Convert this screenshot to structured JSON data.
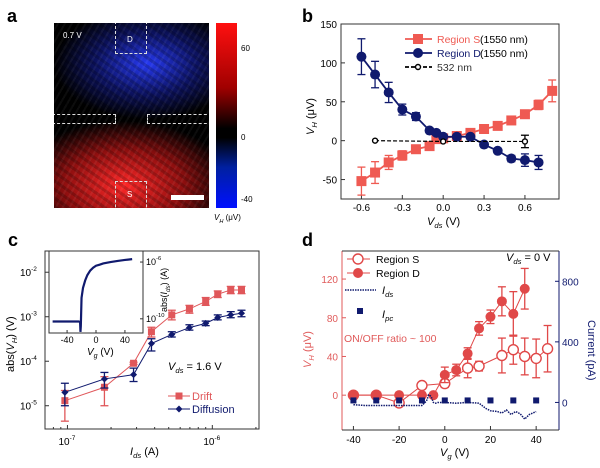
{
  "panels": {
    "a": "a",
    "b": "b",
    "c": "c",
    "d": "d"
  },
  "colors": {
    "red": "#ef5a52",
    "navy": "#101a6e",
    "black": "#000000"
  },
  "chart_data": [
    {
      "panel": "a",
      "type": "heatmap",
      "annotation": "0.7 V",
      "regions": [
        "D",
        "S"
      ],
      "colorbar": {
        "ticks": [
          "60",
          "0",
          "-40"
        ],
        "label": {
          "main": "V",
          "sub": "H",
          "rest": " (μV)"
        },
        "range": [
          -40,
          70
        ],
        "colors": [
          "#0010ff",
          "#000000",
          "#ff1010"
        ]
      },
      "scale_bar": true
    },
    {
      "panel": "b",
      "type": "line",
      "xlabel": {
        "main": "V",
        "sub": "ds",
        "rest": " (V)"
      },
      "ylabel": {
        "main": "V",
        "sub": "H",
        "rest": " (μV)"
      },
      "xlim": [
        -0.75,
        0.85
      ],
      "ylim": [
        -75,
        150
      ],
      "xticks": [
        -0.6,
        -0.3,
        0.0,
        0.3,
        0.6
      ],
      "xtick_labels": [
        "-0.6",
        "-0.3",
        "0.0",
        "0.3",
        "0.6"
      ],
      "yticks": [
        -50,
        0,
        50,
        100,
        150
      ],
      "ytick_labels": [
        "-50",
        "0",
        "50",
        "100",
        "150"
      ],
      "legend_position": "top-right",
      "series": [
        {
          "name": "Region S",
          "note": "(1550 nm)",
          "color": "#ef5a52",
          "marker": "square",
          "x": [
            -0.6,
            -0.5,
            -0.4,
            -0.3,
            -0.2,
            -0.1,
            -0.05,
            0,
            0.1,
            0.2,
            0.3,
            0.4,
            0.5,
            0.6,
            0.7,
            0.8
          ],
          "y": [
            -52,
            -41,
            -28,
            -19,
            -11,
            -7,
            2,
            3,
            6,
            10,
            15,
            19,
            26,
            34,
            46,
            64
          ],
          "yerr": [
            18,
            14,
            9,
            6,
            4,
            4,
            3,
            3,
            3,
            3,
            3,
            3,
            4,
            5,
            6,
            14
          ]
        },
        {
          "name": "Region D",
          "note": "(1550 nm)",
          "color": "#101a6e",
          "marker": "circle",
          "x": [
            -0.6,
            -0.5,
            -0.4,
            -0.3,
            -0.2,
            -0.1,
            -0.05,
            0,
            0.1,
            0.2,
            0.3,
            0.4,
            0.5,
            0.6,
            0.7
          ],
          "y": [
            108,
            85,
            62,
            40,
            31,
            13,
            10,
            5,
            5,
            5,
            -5,
            -13,
            -23,
            -25,
            -28
          ],
          "yerr": [
            23,
            17,
            13,
            7,
            5,
            3,
            3,
            3,
            3,
            3,
            3,
            3,
            4,
            8,
            9
          ]
        },
        {
          "name": "532 nm",
          "color": "#000000",
          "marker": "open-circle",
          "dashed": true,
          "x": [
            -0.5,
            0,
            0.6
          ],
          "y": [
            0,
            -1,
            -1
          ],
          "yerr": [
            1,
            1,
            8
          ]
        }
      ]
    },
    {
      "panel": "c",
      "type": "line",
      "xscale": "log",
      "yscale": "log",
      "xlabel": {
        "main": "I",
        "sub": "ds",
        "rest": "  (A)"
      },
      "ylabel": {
        "pre": "abs(",
        "main": "V",
        "sub": "H",
        "rest": ") (V)"
      },
      "xlim": [
        7e-08,
        2.1e-06
      ],
      "ylim": [
        3e-06,
        0.03
      ],
      "xtick_labels": [
        {
          "value": 1e-07,
          "base": "10",
          "exp": "-7"
        },
        {
          "value": 1e-06,
          "base": "10",
          "exp": "-6"
        }
      ],
      "ytick_labels": [
        {
          "value": 1e-05,
          "base": "10",
          "exp": "-5"
        },
        {
          "value": 0.0001,
          "base": "10",
          "exp": "-4"
        },
        {
          "value": 0.001,
          "base": "10",
          "exp": "-3"
        },
        {
          "value": 0.01,
          "base": "10",
          "exp": "-2"
        }
      ],
      "annotation": {
        "main": "V",
        "sub": "ds",
        "rest": " = 1.6 V"
      },
      "legend_position": "bottom-right",
      "series": [
        {
          "name": "Drift",
          "color": "#e0575a",
          "marker": "square",
          "x": [
            9.6e-08,
            1.8e-07,
            2.86e-07,
            3.8e-07,
            5.25e-07,
            6.95e-07,
            9e-07,
            1.09e-06,
            1.34e-06,
            1.59e-06
          ],
          "y": [
            1.3e-05,
            2.6e-05,
            9e-05,
            0.00046,
            0.0011,
            0.0015,
            0.0022,
            0.0032,
            0.004,
            0.004
          ],
          "y_low": [
            4.5e-06,
            1e-05,
            8.5e-05,
            0.00035,
            0.00085,
            0.0012,
            0.0018,
            0.0027,
            0.0033,
            0.0033
          ],
          "y_high": [
            2.2e-05,
            4.5e-05,
            9.5e-05,
            0.00058,
            0.0014,
            0.0018,
            0.0027,
            0.0038,
            0.0048,
            0.0048
          ]
        },
        {
          "name": "Diffusion",
          "color": "#101a6e",
          "marker": "diamond",
          "x": [
            9.6e-08,
            1.8e-07,
            2.86e-07,
            3.8e-07,
            5.25e-07,
            6.95e-07,
            9e-07,
            1.09e-06,
            1.34e-06,
            1.59e-06
          ],
          "y": [
            2e-05,
            4e-05,
            5e-05,
            0.00025,
            0.0004,
            0.00057,
            0.00071,
            0.00096,
            0.0011,
            0.0012
          ],
          "y_low": [
            1e-05,
            2.5e-05,
            3.5e-05,
            0.00017,
            0.00035,
            0.0005,
            0.00063,
            0.00085,
            0.00095,
            0.001
          ],
          "y_high": [
            3.2e-05,
            5.6e-05,
            7e-05,
            0.00032,
            0.00046,
            0.00066,
            0.0008,
            0.0011,
            0.0013,
            0.0014
          ]
        }
      ],
      "inset": {
        "type": "line",
        "yscale": "log",
        "xlabel": {
          "main": "V",
          "sub": "g",
          "rest": " (V)"
        },
        "ylabel": {
          "pre": "abs(",
          "main": "I",
          "sub": "ds",
          "rest": ") (A)"
        },
        "xlim": [
          -65,
          65
        ],
        "ylim": [
          1e-11,
          6e-06
        ],
        "xtick_labels": [
          {
            "value": -40,
            "label": "-40"
          },
          {
            "value": 0,
            "label": "0"
          },
          {
            "value": 40,
            "label": "40"
          }
        ],
        "ytick_labels": [
          {
            "value": 1e-06,
            "base": "10",
            "exp": "-6"
          },
          {
            "value": 1e-10,
            "base": "10",
            "exp": "-10"
          }
        ],
        "color": "#101a6e",
        "x": [
          -60,
          -50,
          -40,
          -30,
          -24,
          -22,
          -21.5,
          -21,
          -20,
          -18,
          -15,
          -12,
          -8,
          -4,
          0,
          5,
          10,
          20,
          30,
          40,
          50
        ],
        "y": [
          6.5e-11,
          6.5e-11,
          6.5e-11,
          6.5e-11,
          6.5e-11,
          6e-11,
          1.2e-11,
          3e-11,
          3e-09,
          1.5e-08,
          5e-08,
          1.2e-07,
          2.5e-07,
          4e-07,
          5.5e-07,
          6.5e-07,
          8e-07,
          1e-06,
          1.2e-06,
          1.4e-06,
          1.6e-06
        ]
      }
    },
    {
      "panel": "d",
      "type": "line",
      "xlabel": {
        "main": "V",
        "sub": "g",
        "rest": "  (V)"
      },
      "ylabel": {
        "main": "V",
        "sub": "H",
        "rest": "  (μV)"
      },
      "y2label": "Current (pA)",
      "xlim": [
        -45,
        50
      ],
      "ylim": [
        -36,
        149
      ],
      "y2lim": [
        -182,
        1000
      ],
      "xticks": [
        -40,
        -20,
        0,
        20,
        40
      ],
      "xtick_labels": [
        "-40",
        "-20",
        "0",
        "20",
        "40"
      ],
      "yticks": [
        0,
        40,
        80,
        120
      ],
      "ytick_labels": [
        "0",
        "40",
        "80",
        "120"
      ],
      "y2ticks": [
        0,
        400,
        800
      ],
      "y2tick_labels": [
        "0",
        "400",
        "800"
      ],
      "annotations": {
        "ratio": "ON/OFF ratio ~ 100",
        "vds": {
          "main": "V",
          "sub": "ds",
          "rest": " = 0 V"
        }
      },
      "legend_position": "top-left",
      "series": [
        {
          "name": "Region S",
          "color": "#e04848",
          "marker": "open-circle",
          "axis": "left",
          "x": [
            -40,
            -30,
            -20,
            -10,
            0,
            10,
            15,
            25,
            30,
            35,
            40,
            45
          ],
          "y": [
            0,
            0,
            -8,
            10,
            12,
            28,
            30,
            41,
            47,
            40,
            38,
            48
          ],
          "yerr": [
            0,
            0,
            0,
            3,
            4,
            10,
            5,
            18,
            15,
            19,
            20,
            24
          ]
        },
        {
          "name": "Region D",
          "color": "#e04848",
          "marker": "circle",
          "axis": "left",
          "x": [
            -40,
            -30,
            -20,
            -10,
            -5,
            0,
            5,
            10,
            15,
            20,
            25,
            30,
            35
          ],
          "y": [
            0,
            0,
            0,
            0,
            0,
            21,
            26,
            43,
            69,
            81,
            97,
            84,
            110
          ],
          "yerr": [
            0,
            0,
            0,
            0,
            0,
            8,
            6,
            6,
            7,
            7,
            15,
            23,
            21
          ]
        },
        {
          "name": {
            "main": "I",
            "sub": "ds"
          },
          "color": "#101a6e",
          "line": "dotted",
          "axis": "right",
          "x": [
            -40,
            -35,
            -30,
            -25,
            -20,
            -15,
            -10,
            -8,
            -7,
            -6,
            -5,
            -4,
            -3,
            0,
            5,
            10,
            15,
            18,
            20,
            23,
            25,
            27,
            29,
            31,
            33,
            35,
            37,
            40
          ],
          "y": [
            -15,
            -20,
            -20,
            -20,
            -20,
            -20,
            -20,
            10,
            50,
            40,
            0,
            -5,
            0,
            0,
            -5,
            0,
            -5,
            -40,
            -55,
            -60,
            -70,
            -50,
            -80,
            -60,
            -75,
            -110,
            -80,
            -60
          ]
        },
        {
          "name": {
            "main": "I",
            "sub": "pc"
          },
          "color": "#101a6e",
          "marker": "square",
          "axis": "right",
          "x": [
            -40,
            -30,
            -20,
            -10,
            0,
            10,
            20,
            30,
            40
          ],
          "y": [
            0,
            0,
            0,
            0,
            0,
            0,
            0,
            0,
            0
          ]
        }
      ]
    }
  ]
}
